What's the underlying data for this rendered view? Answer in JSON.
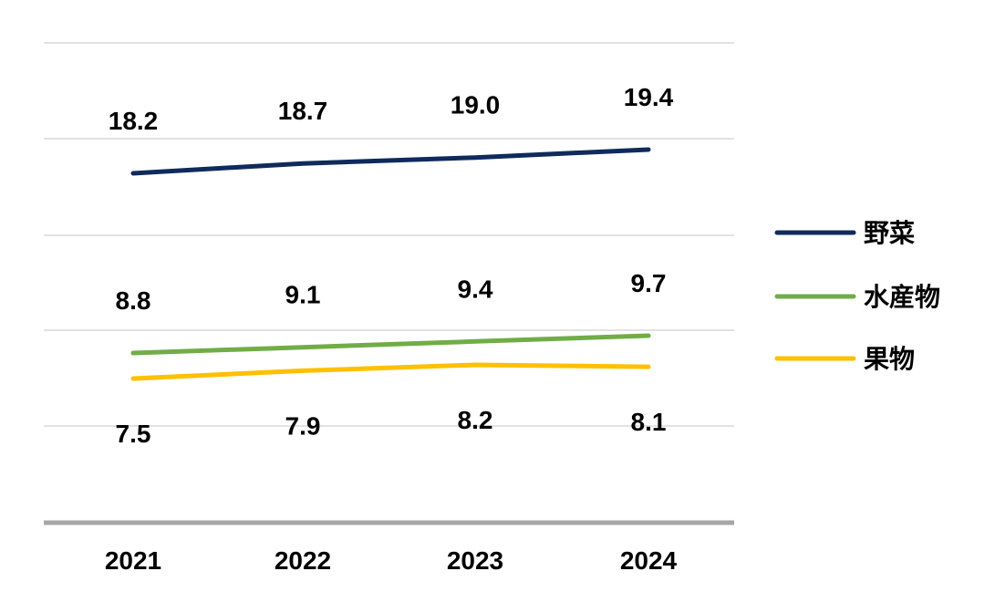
{
  "chart_data": {
    "type": "line",
    "categories": [
      "2021",
      "2022",
      "2023",
      "2024"
    ],
    "series": [
      {
        "name": "野菜",
        "values": [
          18.2,
          18.7,
          19.0,
          19.4
        ],
        "color": "#0f2a5c"
      },
      {
        "name": "水産物",
        "values": [
          8.8,
          9.1,
          9.4,
          9.7
        ],
        "color": "#70ad47"
      },
      {
        "name": "果物",
        "values": [
          7.5,
          7.9,
          8.2,
          8.1
        ],
        "color": "#ffc000"
      }
    ],
    "grid": true,
    "legend": "right",
    "gridline_color": "#d9d9d9",
    "axis_color": "#a6a6a6"
  }
}
